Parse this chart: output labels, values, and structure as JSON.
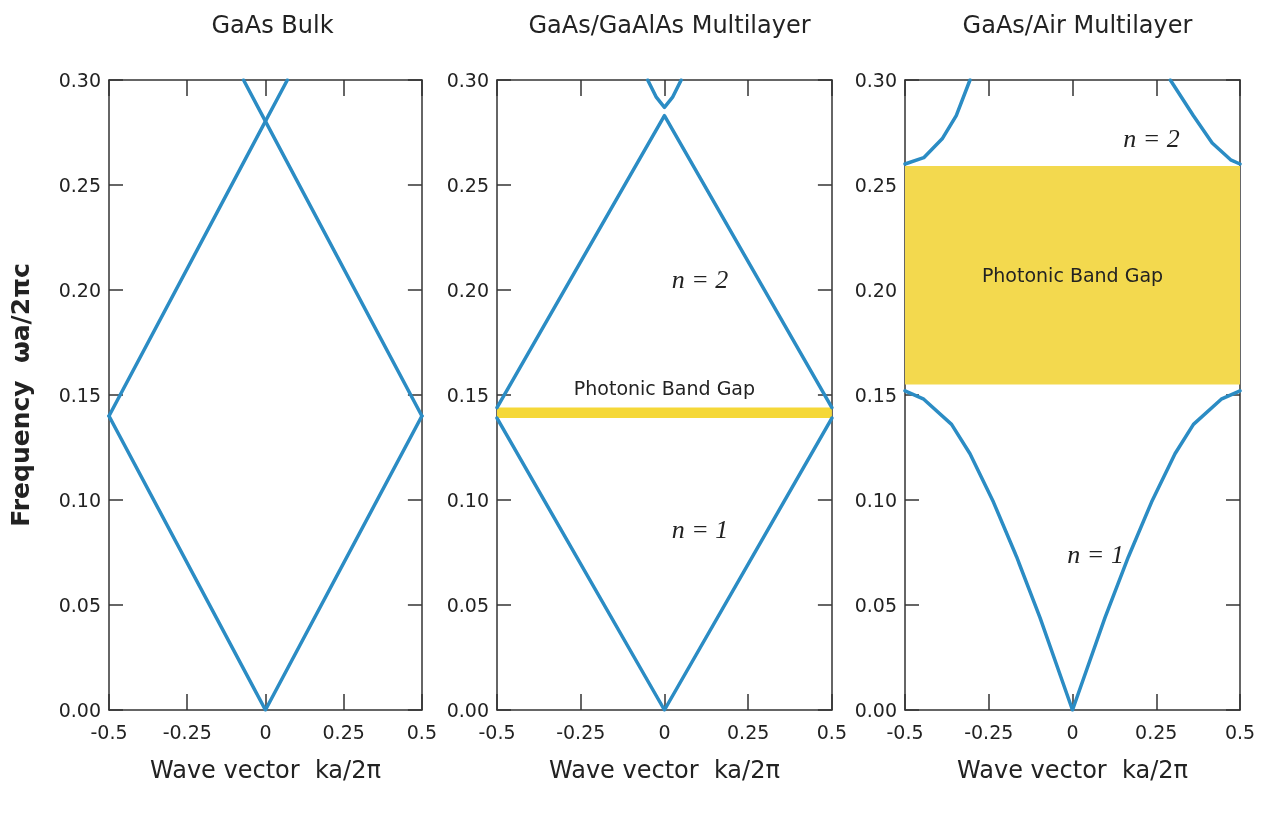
{
  "chart_data": [
    {
      "type": "line",
      "title": "GaAs Bulk",
      "xlabel": "Wave vector  ka/2π",
      "ylabel": "Frequency  ωa/2πc",
      "marker": "none",
      "xlim": [
        -0.5,
        0.5
      ],
      "ylim": [
        0,
        0.3
      ],
      "xticks": [
        -0.5,
        -0.25,
        0,
        0.25,
        0.5
      ],
      "yticks": [
        {
          "value": 0,
          "label": "0.00"
        },
        0.05,
        {
          "value": 0.1,
          "label": "0.10"
        },
        0.15,
        {
          "value": 0.2,
          "label": "0.20"
        },
        0.25,
        {
          "value": 0.3,
          "label": "0.30"
        }
      ],
      "series": [
        {
          "color": "#2b8cc4",
          "x": [
            -0.5,
            0,
            0.5
          ],
          "values": [
            0.14,
            0,
            0.14
          ]
        },
        {
          "color": "#2b8cc4",
          "x": [
            -0.5,
            0.07
          ],
          "values": [
            0.14,
            0.3
          ]
        },
        {
          "color": "#2b8cc4",
          "x": [
            -0.07,
            0.5
          ],
          "values": [
            0.3,
            0.14
          ]
        }
      ]
    },
    {
      "type": "line",
      "title": "GaAs/GaAlAs Multilayer",
      "xlabel": "Wave vector  ka/2π",
      "marker": "none",
      "xlim": [
        -0.5,
        0.5
      ],
      "ylim": [
        0,
        0.3
      ],
      "xticks": [
        -0.5,
        -0.25,
        0,
        0.25,
        0.5
      ],
      "yticks": [
        {
          "value": 0,
          "label": "0.00"
        },
        0.05,
        {
          "value": 0.1,
          "label": "0.10"
        },
        0.15,
        {
          "value": 0.2,
          "label": "0.20"
        },
        0.25,
        {
          "value": 0.3,
          "label": "0.30"
        }
      ],
      "series": [
        {
          "color": "#2b8cc4",
          "x": [
            -0.5,
            0,
            0.5
          ],
          "values": [
            0.139,
            0,
            0.139
          ]
        },
        {
          "color": "#2b8cc4",
          "x": [
            -0.5,
            0,
            0.5
          ],
          "values": [
            0.144,
            0.283,
            0.144
          ]
        },
        {
          "color": "#2b8cc4",
          "x": [
            -0.05,
            -0.025,
            0,
            0.025,
            0.05
          ],
          "values": [
            0.3,
            0.292,
            0.287,
            0.292,
            0.3
          ]
        }
      ],
      "bands": [
        {
          "axis": "y",
          "from": 0.139,
          "to": 0.144,
          "label": "Photonic Band Gap",
          "color": "#f5d838"
        }
      ],
      "annotations": [
        "n = 2",
        "n = 1"
      ]
    },
    {
      "type": "line",
      "title": "GaAs/Air Multilayer",
      "xlabel": "Wave vector  ka/2π",
      "marker": "none",
      "xlim": [
        -0.5,
        0.5
      ],
      "ylim": [
        0,
        0.3
      ],
      "xticks": [
        -0.5,
        -0.25,
        0,
        0.25,
        0.5
      ],
      "yticks": [
        {
          "value": 0,
          "label": "0.00"
        },
        0.05,
        {
          "value": 0.1,
          "label": "0.10"
        },
        0.15,
        {
          "value": 0.2,
          "label": "0.20"
        },
        0.25,
        {
          "value": 0.3,
          "label": "0.30"
        }
      ],
      "series": [
        {
          "color": "#2b8cc4",
          "x": [
            -0.5,
            -0.444,
            -0.361,
            -0.306,
            -0.236,
            -0.167,
            -0.097,
            0,
            0.097,
            0.167,
            0.236,
            0.306,
            0.361,
            0.444,
            0.5
          ],
          "values": [
            0.152,
            0.148,
            0.136,
            0.122,
            0.099,
            0.073,
            0.044,
            0,
            0.044,
            0.073,
            0.099,
            0.122,
            0.136,
            0.148,
            0.152
          ]
        },
        {
          "color": "#2b8cc4",
          "x": [
            -0.5,
            -0.444,
            -0.389,
            -0.347,
            -0.306
          ],
          "values": [
            0.26,
            0.263,
            0.272,
            0.283,
            0.3
          ]
        },
        {
          "color": "#2b8cc4",
          "x": [
            0.292,
            0.361,
            0.417,
            0.472,
            0.5
          ],
          "values": [
            0.3,
            0.283,
            0.27,
            0.262,
            0.26
          ]
        }
      ],
      "bands": [
        {
          "axis": "y",
          "from": 0.155,
          "to": 0.259,
          "label": "Photonic Band Gap",
          "color": "#f3d94e"
        }
      ],
      "annotations": [
        "n = 2",
        "n = 1"
      ]
    }
  ]
}
